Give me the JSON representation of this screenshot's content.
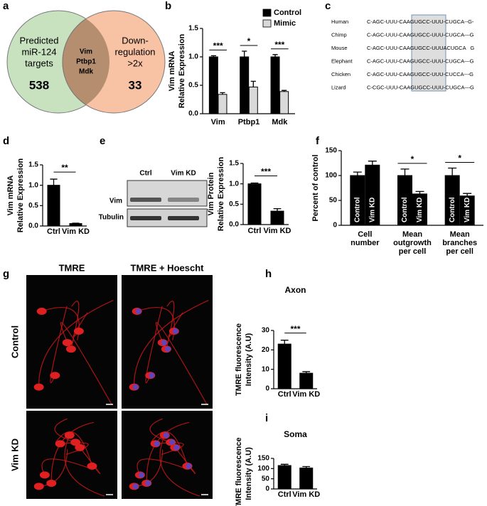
{
  "venn": {
    "panel": "a",
    "left_label": [
      "Predicted",
      "miR-124",
      "targets"
    ],
    "left_count": "538",
    "right_label": [
      "Down-",
      "regulation",
      ">2x"
    ],
    "right_count": "33",
    "overlap": [
      "Vim",
      "Ptbp1",
      "Mdk"
    ],
    "left_color": "#c8e2c0",
    "right_color": "#f8c2a5",
    "overlap_color": "#b48e6e"
  },
  "alignment": {
    "panel": "c",
    "rows": [
      {
        "species": "Human",
        "sequence": "C-AGC-UUU-CAAGUGCC-UUU-CUGCA--G-"
      },
      {
        "species": "Chimp",
        "sequence": "C-AGC-UUU-CAAGUGCC-UUU-CUGCA---G"
      },
      {
        "species": "Mouse",
        "sequence": "C-AGC-UUU-CAAGUGCC-UUUACUGCA   G"
      },
      {
        "species": "Elephant",
        "sequence": "C-AGC-UUU-CAAGUGCC-UUU-CUGCA---G"
      },
      {
        "species": "Chicken",
        "sequence": "C-AGC-UUU-CAAGUGCC-UUU-CUCCA---G"
      },
      {
        "species": "Lizard",
        "sequence": "C-CGC-UUU-CAAGUGCC-UUU-CUGCA---G"
      }
    ]
  },
  "blot": {
    "lanes": [
      "Ctrl",
      "Vim KD"
    ],
    "bands": [
      "Vim",
      "Tubulin"
    ]
  },
  "micrographs": {
    "panel": "g",
    "columns": [
      "TMRE",
      "TMRE + Hoescht"
    ],
    "rows": [
      "Control",
      "Vim KD"
    ]
  },
  "chart_data": [
    {
      "type": "bar",
      "panel": "b",
      "ylabel": [
        "Vim mRNA",
        "Relative Expression"
      ],
      "categories": [
        "Vim",
        "Ptbp1",
        "Mdk"
      ],
      "series": [
        {
          "name": "Control",
          "color": "#000000",
          "values": [
            1.0,
            1.0,
            1.0
          ],
          "errors": [
            0.02,
            0.1,
            0.04
          ]
        },
        {
          "name": "Mimic",
          "color": "#d9d9d9",
          "values": [
            0.34,
            0.47,
            0.39
          ],
          "errors": [
            0.03,
            0.1,
            0.02
          ]
        }
      ],
      "annotations": [
        "***",
        "*",
        "***"
      ],
      "ylim": [
        0,
        1.5
      ],
      "yticks": [
        {
          "value": 0,
          "label": "0.0"
        },
        0.5,
        {
          "value": 1,
          "label": "1.0"
        },
        1.5
      ],
      "legend": "top-right"
    },
    {
      "type": "bar",
      "panel": "d",
      "ylabel": [
        "Vim mRNA",
        "Relative Expression"
      ],
      "categories": [
        "Ctrl",
        "Vim KD"
      ],
      "values": [
        1.0,
        0.06
      ],
      "errors": [
        0.15,
        0.01
      ],
      "color": "#000000",
      "annotation": "**",
      "ylim": [
        0,
        1.5
      ],
      "yticks": [
        {
          "value": 0,
          "label": "0.0"
        },
        0.5,
        {
          "value": 1,
          "label": "1.0"
        },
        1.5
      ]
    },
    {
      "type": "bar",
      "panel": "e",
      "ylabel": [
        "Vim Protein",
        "Relative Expression"
      ],
      "categories": [
        "Ctrl",
        "Vim KD"
      ],
      "values": [
        1.0,
        0.33
      ],
      "errors": [
        0.02,
        0.06
      ],
      "color": "#000000",
      "annotation": "***",
      "ylim": [
        0,
        1.5
      ],
      "yticks": [
        {
          "value": 0,
          "label": "0.0"
        },
        0.5,
        {
          "value": 1,
          "label": "1.0"
        },
        1.5
      ]
    },
    {
      "type": "bar",
      "panel": "f",
      "ylabel": [
        "Percent of control"
      ],
      "categories": [
        [
          "Cell",
          "number"
        ],
        [
          "Mean",
          "outgrowth",
          "per cell"
        ],
        [
          "Mean",
          "branches",
          "per cell"
        ]
      ],
      "series": [
        {
          "name": "Control",
          "color": "#000000",
          "values": [
            100,
            100,
            100
          ],
          "errors": [
            7,
            13,
            15
          ]
        },
        {
          "name": "Vim KD",
          "color": "#000000",
          "values": [
            121,
            63,
            59
          ],
          "errors": [
            8,
            5,
            5
          ]
        }
      ],
      "annotations": [
        null,
        "*",
        "*"
      ],
      "ylim": [
        0,
        150
      ],
      "yticks": [
        0,
        50,
        100,
        150
      ]
    },
    {
      "type": "bar",
      "panel": "h",
      "title": "Axon",
      "ylabel": [
        "TMRE fluorescence",
        "Intensity (A.U)"
      ],
      "categories": [
        "Ctrl",
        "Vim KD"
      ],
      "values": [
        23,
        8
      ],
      "errors": [
        2,
        0.8
      ],
      "color": "#000000",
      "annotation": "***",
      "ylim": [
        0,
        30
      ],
      "yticks": [
        0,
        10,
        20,
        30
      ]
    },
    {
      "type": "bar",
      "panel": "i",
      "title": "Soma",
      "ylabel": [
        "TMRE fluorescence",
        "Intensity (A.U)"
      ],
      "categories": [
        "Ctrl",
        "Vim KD"
      ],
      "values": [
        115,
        103
      ],
      "errors": [
        6,
        7
      ],
      "color": "#000000",
      "ylim": [
        0,
        150
      ],
      "yticks": [
        0,
        50,
        100,
        150
      ]
    }
  ]
}
